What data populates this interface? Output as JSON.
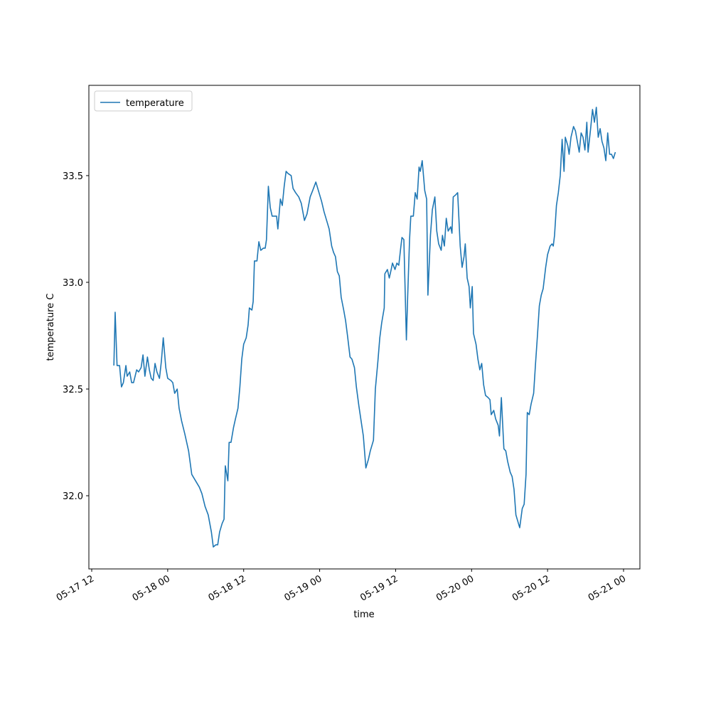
{
  "chart_data": {
    "type": "line",
    "x_label": "time",
    "y_label": "temperature C",
    "x": [
      "05-17 15:30",
      "05-17 15:42",
      "05-17 16:00",
      "05-17 16:24",
      "05-17 16:42",
      "05-17 17:00",
      "05-17 17:24",
      "05-17 17:36",
      "05-17 18:00",
      "05-17 18:18",
      "05-17 18:36",
      "05-17 19:06",
      "05-17 19:24",
      "05-17 19:48",
      "05-17 20:06",
      "05-17 20:24",
      "05-17 20:48",
      "05-17 21:06",
      "05-17 21:24",
      "05-17 21:42",
      "05-17 22:00",
      "05-17 22:18",
      "05-17 22:42",
      "05-17 23:00",
      "05-17 23:18",
      "05-17 23:42",
      "05-18 00:00",
      "05-18 00:30",
      "05-18 00:48",
      "05-18 01:06",
      "05-18 01:30",
      "05-18 01:48",
      "05-18 02:12",
      "05-18 02:42",
      "05-18 03:18",
      "05-18 03:48",
      "05-18 04:24",
      "05-18 05:00",
      "05-18 05:24",
      "05-18 05:54",
      "05-18 06:24",
      "05-18 06:54",
      "05-18 07:12",
      "05-18 07:36",
      "05-18 07:54",
      "05-18 08:12",
      "05-18 08:36",
      "05-18 08:54",
      "05-18 09:06",
      "05-18 09:30",
      "05-18 09:42",
      "05-18 10:00",
      "05-18 10:24",
      "05-18 10:42",
      "05-18 11:06",
      "05-18 11:24",
      "05-18 11:42",
      "05-18 12:00",
      "05-18 12:24",
      "05-18 12:42",
      "05-18 12:54",
      "05-18 13:18",
      "05-18 13:30",
      "05-18 13:42",
      "05-18 14:06",
      "05-18 14:24",
      "05-18 14:42",
      "05-18 15:06",
      "05-18 15:24",
      "05-18 15:36",
      "05-18 15:54",
      "05-18 16:12",
      "05-18 16:30",
      "05-18 16:54",
      "05-18 17:12",
      "05-18 17:24",
      "05-18 17:48",
      "05-18 18:06",
      "05-18 18:24",
      "05-18 18:42",
      "05-18 19:00",
      "05-18 19:30",
      "05-18 19:48",
      "05-18 20:12",
      "05-18 20:42",
      "05-18 21:06",
      "05-18 21:36",
      "05-18 22:00",
      "05-18 22:30",
      "05-18 22:54",
      "05-18 23:24",
      "05-18 23:48",
      "05-19 00:18",
      "05-19 00:42",
      "05-19 01:12",
      "05-19 01:30",
      "05-19 01:54",
      "05-19 02:12",
      "05-19 02:30",
      "05-19 02:48",
      "05-19 03:06",
      "05-19 03:24",
      "05-19 03:48",
      "05-19 04:06",
      "05-19 04:24",
      "05-19 04:48",
      "05-19 05:06",
      "05-19 05:30",
      "05-19 05:48",
      "05-19 06:12",
      "05-19 06:42",
      "05-19 06:54",
      "05-19 07:18",
      "05-19 07:42",
      "05-19 08:00",
      "05-19 08:30",
      "05-19 08:48",
      "05-19 09:12",
      "05-19 09:30",
      "05-19 09:48",
      "05-19 10:12",
      "05-19 10:18",
      "05-19 10:42",
      "05-19 11:00",
      "05-19 11:18",
      "05-19 11:30",
      "05-19 11:54",
      "05-19 12:12",
      "05-19 12:30",
      "05-19 12:48",
      "05-19 13:00",
      "05-19 13:18",
      "05-19 13:42",
      "05-19 13:54",
      "05-19 14:12",
      "05-19 14:24",
      "05-19 14:48",
      "05-19 15:06",
      "05-19 15:24",
      "05-19 15:42",
      "05-19 15:54",
      "05-19 16:12",
      "05-19 16:36",
      "05-19 16:54",
      "05-19 17:06",
      "05-19 17:30",
      "05-19 17:48",
      "05-19 18:12",
      "05-19 18:30",
      "05-19 18:48",
      "05-19 19:12",
      "05-19 19:24",
      "05-19 19:42",
      "05-19 20:00",
      "05-19 20:18",
      "05-19 20:42",
      "05-19 20:54",
      "05-19 21:06",
      "05-19 21:30",
      "05-19 21:48",
      "05-19 22:12",
      "05-19 22:30",
      "05-19 22:48",
      "05-19 23:00",
      "05-19 23:18",
      "05-19 23:36",
      "05-19 23:48",
      "05-20 00:06",
      "05-20 00:18",
      "05-20 00:42",
      "05-20 01:00",
      "05-20 01:18",
      "05-20 01:36",
      "05-20 01:54",
      "05-20 02:12",
      "05-20 02:36",
      "05-20 02:54",
      "05-20 03:06",
      "05-20 03:30",
      "05-20 03:48",
      "05-20 04:12",
      "05-20 04:24",
      "05-20 04:42",
      "05-20 05:06",
      "05-20 05:24",
      "05-20 05:42",
      "05-20 06:06",
      "05-20 06:24",
      "05-20 06:42",
      "05-20 07:00",
      "05-20 07:18",
      "05-20 07:36",
      "05-20 08:00",
      "05-20 08:18",
      "05-20 08:36",
      "05-20 08:48",
      "05-20 09:06",
      "05-20 09:24",
      "05-20 09:48",
      "05-20 10:06",
      "05-20 10:24",
      "05-20 10:42",
      "05-20 11:00",
      "05-20 11:18",
      "05-20 11:42",
      "05-20 12:00",
      "05-20 12:24",
      "05-20 12:42",
      "05-20 12:54",
      "05-20 13:06",
      "05-20 13:24",
      "05-20 13:42",
      "05-20 14:00",
      "05-20 14:18",
      "05-20 14:36",
      "05-20 14:48",
      "05-20 15:12",
      "05-20 15:24",
      "05-20 15:42",
      "05-20 16:06",
      "05-20 16:24",
      "05-20 16:42",
      "05-20 17:00",
      "05-20 17:18",
      "05-20 17:36",
      "05-20 17:54",
      "05-20 18:12",
      "05-20 18:24",
      "05-20 18:48",
      "05-20 19:06",
      "05-20 19:24",
      "05-20 19:42",
      "05-20 20:00",
      "05-20 20:18",
      "05-20 20:36",
      "05-20 20:54",
      "05-20 21:12",
      "05-20 21:30",
      "05-20 21:48",
      "05-20 22:06",
      "05-20 22:24",
      "05-20 22:42"
    ],
    "series": [
      {
        "name": "temperature",
        "color": "#1f77b4",
        "values": [
          32.61,
          32.86,
          32.61,
          32.61,
          32.51,
          32.53,
          32.61,
          32.56,
          32.58,
          32.53,
          32.53,
          32.59,
          32.58,
          32.6,
          32.66,
          32.56,
          32.65,
          32.59,
          32.55,
          32.54,
          32.62,
          32.58,
          32.55,
          32.63,
          32.74,
          32.6,
          32.55,
          32.54,
          32.53,
          32.48,
          32.5,
          32.41,
          32.35,
          32.29,
          32.21,
          32.1,
          32.07,
          32.04,
          32.01,
          31.95,
          31.91,
          31.83,
          31.76,
          31.77,
          31.77,
          31.83,
          31.87,
          31.89,
          32.14,
          32.07,
          32.25,
          32.25,
          32.32,
          32.36,
          32.41,
          32.51,
          32.64,
          32.71,
          32.74,
          32.8,
          32.88,
          32.87,
          32.91,
          33.1,
          33.1,
          33.19,
          33.15,
          33.16,
          33.16,
          33.2,
          33.45,
          33.35,
          33.31,
          33.31,
          33.31,
          33.25,
          33.39,
          33.36,
          33.45,
          33.52,
          33.51,
          33.5,
          33.44,
          33.42,
          33.4,
          33.37,
          33.29,
          33.32,
          33.4,
          33.43,
          33.47,
          33.43,
          33.38,
          33.33,
          33.28,
          33.25,
          33.17,
          33.14,
          33.12,
          33.05,
          33.03,
          32.93,
          32.87,
          32.82,
          32.75,
          32.65,
          32.64,
          32.6,
          32.51,
          32.42,
          32.32,
          32.28,
          32.13,
          32.17,
          32.21,
          32.26,
          32.5,
          32.63,
          32.74,
          32.81,
          32.88,
          33.04,
          33.06,
          33.02,
          33.06,
          33.09,
          33.06,
          33.09,
          33.08,
          33.16,
          33.21,
          33.2,
          32.73,
          32.93,
          33.2,
          33.31,
          33.31,
          33.42,
          33.39,
          33.54,
          33.52,
          33.57,
          33.43,
          33.39,
          32.94,
          33.22,
          33.34,
          33.4,
          33.24,
          33.18,
          33.15,
          33.22,
          33.17,
          33.3,
          33.24,
          33.26,
          33.23,
          33.4,
          33.41,
          33.42,
          33.17,
          33.07,
          33.12,
          33.18,
          33.02,
          32.98,
          32.88,
          32.98,
          32.76,
          32.71,
          32.64,
          32.59,
          32.62,
          32.52,
          32.47,
          32.46,
          32.45,
          32.38,
          32.4,
          32.36,
          32.33,
          32.28,
          32.46,
          32.22,
          32.21,
          32.16,
          32.11,
          32.09,
          32.03,
          31.91,
          31.88,
          31.85,
          31.94,
          31.96,
          32.1,
          32.39,
          32.38,
          32.43,
          32.48,
          32.62,
          32.75,
          32.89,
          32.94,
          32.97,
          33.07,
          33.13,
          33.17,
          33.18,
          33.17,
          33.22,
          33.36,
          33.42,
          33.5,
          33.67,
          33.52,
          33.68,
          33.64,
          33.6,
          33.68,
          33.73,
          33.71,
          33.66,
          33.61,
          33.7,
          33.68,
          33.62,
          33.75,
          33.61,
          33.72,
          33.81,
          33.75,
          33.82,
          33.68,
          33.72,
          33.66,
          33.63,
          33.57,
          33.7,
          33.6,
          33.6,
          33.58,
          33.61
        ]
      }
    ],
    "xlim": [
      "05-17 11:33",
      "05-21 02:35"
    ],
    "xticks": [
      {
        "value": "05-17 12:00",
        "label": "05-17 12"
      },
      {
        "value": "05-18 00:00",
        "label": "05-18 00"
      },
      {
        "value": "05-18 12:00",
        "label": "05-18 12"
      },
      {
        "value": "05-19 00:00",
        "label": "05-19 00"
      },
      {
        "value": "05-19 12:00",
        "label": "05-19 12"
      },
      {
        "value": "05-20 00:00",
        "label": "05-20 00"
      },
      {
        "value": "05-20 12:00",
        "label": "05-20 12"
      },
      {
        "value": "05-21 00:00",
        "label": "05-21 00"
      }
    ],
    "ylim": [
      31.657,
      33.923
    ],
    "yticks": [
      {
        "value": 32,
        "label": "32.0"
      },
      32.5,
      {
        "value": 33,
        "label": "33.0"
      },
      33.5
    ],
    "legend": "upper left"
  }
}
